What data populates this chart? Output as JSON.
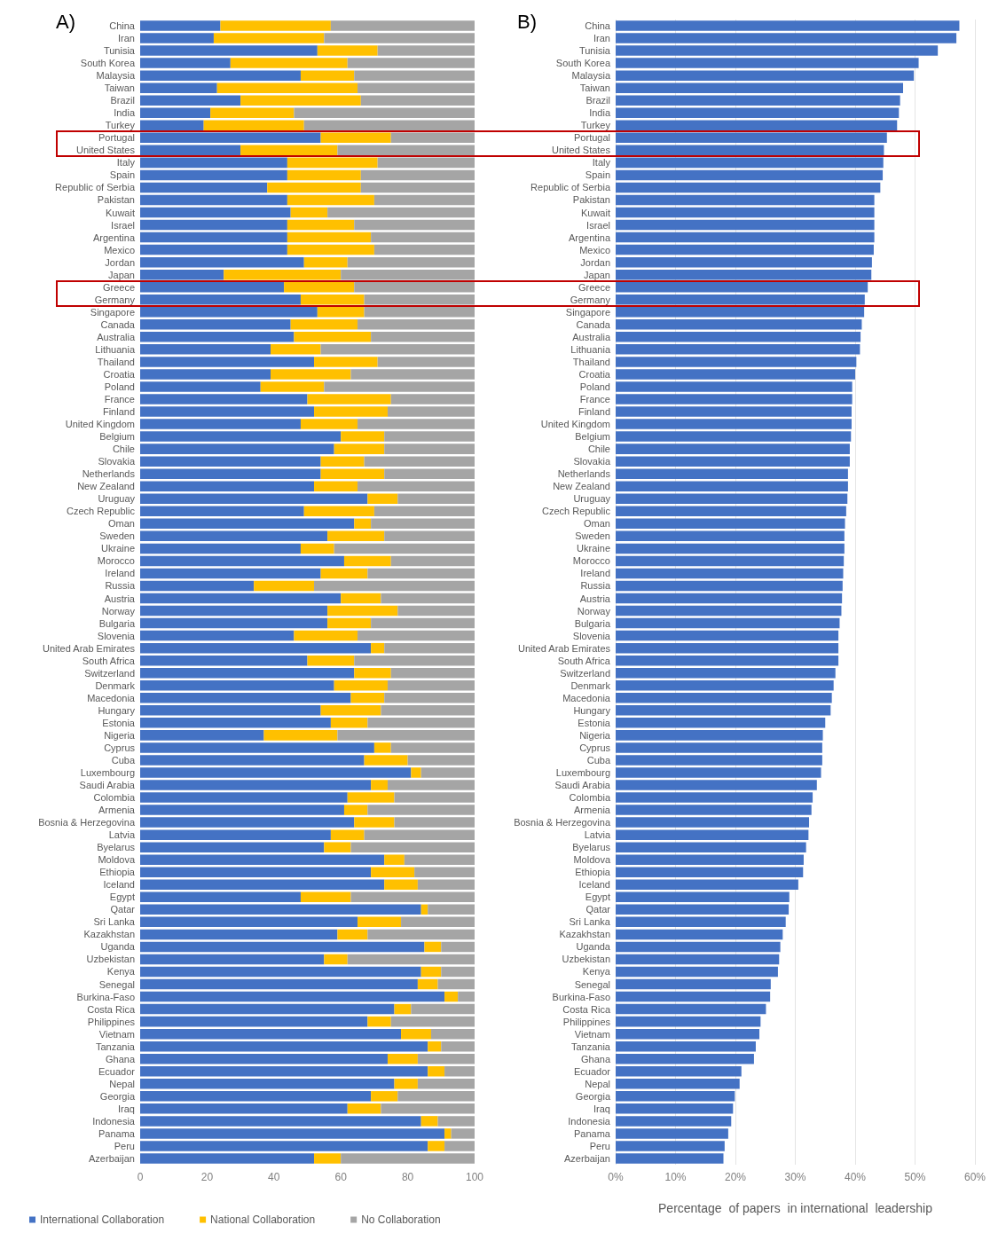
{
  "chart_data": [
    {
      "type": "bar",
      "title": "A)",
      "orientation": "horizontal",
      "stacked": true,
      "legend": "bottom",
      "grid": false,
      "categories": [
        "China",
        "Iran",
        "Tunisia",
        "South Korea",
        "Malaysia",
        "Taiwan",
        "Brazil",
        "India",
        "Turkey",
        "Portugal",
        "United States",
        "Italy",
        "Spain",
        "Republic of Serbia",
        "Pakistan",
        "Kuwait",
        "Israel",
        "Argentina",
        "Mexico",
        "Jordan",
        "Japan",
        "Greece",
        "Germany",
        "Singapore",
        "Canada",
        "Australia",
        "Lithuania",
        "Thailand",
        "Croatia",
        "Poland",
        "France",
        "Finland",
        "United Kingdom",
        "Belgium",
        "Chile",
        "Slovakia",
        "Netherlands",
        "New Zealand",
        "Uruguay",
        "Czech Republic",
        "Oman",
        "Sweden",
        "Ukraine",
        "Morocco",
        "Ireland",
        "Russia",
        "Austria",
        "Norway",
        "Bulgaria",
        "Slovenia",
        "United Arab Emirates",
        "South Africa",
        "Switzerland",
        "Denmark",
        "Macedonia",
        "Hungary",
        "Estonia",
        "Nigeria",
        "Cyprus",
        "Cuba",
        "Luxembourg",
        "Saudi Arabia",
        "Colombia",
        "Armenia",
        "Bosnia & Herzegovina",
        "Latvia",
        "Byelarus",
        "Moldova",
        "Ethiopia",
        "Iceland",
        "Egypt",
        "Qatar",
        "Sri Lanka",
        "Kazakhstan",
        "Uganda",
        "Uzbekistan",
        "Kenya",
        "Senegal",
        "Burkina-Faso",
        "Costa Rica",
        "Philippines",
        "Vietnam",
        "Tanzania",
        "Ghana",
        "Ecuador",
        "Nepal",
        "Georgia",
        "Iraq",
        "Indonesia",
        "Panama",
        "Peru",
        "Azerbaijan"
      ],
      "series": [
        {
          "name": "International Collaboration",
          "color": "#4472c4",
          "values": [
            24,
            22,
            53,
            27,
            48,
            23,
            30,
            21,
            19,
            54,
            30,
            44,
            44,
            38,
            44,
            45,
            44,
            44,
            44,
            49,
            25,
            43,
            48,
            53,
            45,
            46,
            39,
            52,
            39,
            36,
            50,
            52,
            48,
            60,
            58,
            54,
            54,
            52,
            68,
            49,
            64,
            56,
            48,
            61,
            54,
            34,
            60,
            56,
            56,
            46,
            69,
            50,
            64,
            58,
            63,
            54,
            57,
            37,
            70,
            67,
            81,
            69,
            62,
            61,
            64,
            57,
            55,
            73,
            69,
            73,
            48,
            84,
            65,
            59,
            85,
            55,
            84,
            83,
            91,
            76,
            68,
            78,
            86,
            74,
            86,
            76,
            69,
            62,
            84,
            91,
            86,
            52
          ]
        },
        {
          "name": "National Collaboration",
          "color": "#ffc000",
          "values": [
            33,
            33,
            18,
            35,
            16,
            42,
            36,
            25,
            30,
            21,
            29,
            27,
            22,
            28,
            26,
            11,
            20,
            25,
            26,
            13,
            35,
            21,
            19,
            14,
            20,
            23,
            15,
            19,
            24,
            19,
            25,
            22,
            17,
            13,
            15,
            13,
            19,
            13,
            9,
            21,
            5,
            17,
            10,
            14,
            14,
            18,
            12,
            21,
            13,
            19,
            4,
            14,
            11,
            16,
            10,
            18,
            11,
            22,
            5,
            13,
            3,
            5,
            14,
            7,
            12,
            10,
            8,
            6,
            13,
            10,
            15,
            2,
            13,
            9,
            5,
            7,
            6,
            6,
            4,
            5,
            7,
            9,
            4,
            9,
            5,
            7,
            8,
            10,
            5,
            2,
            5,
            8
          ]
        },
        {
          "name": "No Collaboration",
          "color": "#a5a5a5",
          "values": [
            43,
            45,
            29,
            38,
            36,
            35,
            34,
            54,
            51,
            25,
            41,
            29,
            34,
            34,
            30,
            44,
            36,
            31,
            30,
            38,
            40,
            36,
            33,
            33,
            35,
            31,
            46,
            29,
            37,
            45,
            25,
            26,
            35,
            27,
            27,
            33,
            27,
            35,
            23,
            30,
            31,
            27,
            42,
            25,
            32,
            48,
            28,
            23,
            31,
            35,
            27,
            36,
            25,
            26,
            27,
            28,
            32,
            41,
            25,
            20,
            16,
            26,
            24,
            32,
            24,
            33,
            37,
            21,
            18,
            17,
            37,
            14,
            22,
            32,
            10,
            38,
            10,
            11,
            5,
            19,
            25,
            13,
            10,
            17,
            9,
            17,
            23,
            28,
            11,
            7,
            9,
            40
          ]
        }
      ],
      "xlim": [
        0,
        100
      ],
      "xticks": [
        0,
        20,
        40,
        60,
        80,
        100
      ]
    },
    {
      "type": "bar",
      "title": "B)",
      "orientation": "horizontal",
      "grid": "x",
      "xlabel": "Percentage  of papers  in international  leadership",
      "categories": [
        "China",
        "Iran",
        "Tunisia",
        "South Korea",
        "Malaysia",
        "Taiwan",
        "Brazil",
        "India",
        "Turkey",
        "Portugal",
        "United States",
        "Italy",
        "Spain",
        "Republic of Serbia",
        "Pakistan",
        "Kuwait",
        "Israel",
        "Argentina",
        "Mexico",
        "Jordan",
        "Japan",
        "Greece",
        "Germany",
        "Singapore",
        "Canada",
        "Australia",
        "Lithuania",
        "Thailand",
        "Croatia",
        "Poland",
        "France",
        "Finland",
        "United Kingdom",
        "Belgium",
        "Chile",
        "Slovakia",
        "Netherlands",
        "New Zealand",
        "Uruguay",
        "Czech Republic",
        "Oman",
        "Sweden",
        "Ukraine",
        "Morocco",
        "Ireland",
        "Russia",
        "Austria",
        "Norway",
        "Bulgaria",
        "Slovenia",
        "United Arab Emirates",
        "South Africa",
        "Switzerland",
        "Denmark",
        "Macedonia",
        "Hungary",
        "Estonia",
        "Nigeria",
        "Cyprus",
        "Cuba",
        "Luxembourg",
        "Saudi Arabia",
        "Colombia",
        "Armenia",
        "Bosnia & Herzegovina",
        "Latvia",
        "Byelarus",
        "Moldova",
        "Ethiopia",
        "Iceland",
        "Egypt",
        "Qatar",
        "Sri Lanka",
        "Kazakhstan",
        "Uganda",
        "Uzbekistan",
        "Kenya",
        "Senegal",
        "Burkina-Faso",
        "Costa Rica",
        "Philippines",
        "Vietnam",
        "Tanzania",
        "Ghana",
        "Ecuador",
        "Nepal",
        "Georgia",
        "Iraq",
        "Indonesia",
        "Panama",
        "Peru",
        "Azerbaijan"
      ],
      "color": "#4472c4",
      "values": [
        57.4,
        56.9,
        53.8,
        50.6,
        49.8,
        48,
        47.5,
        47.3,
        47,
        45.3,
        44.8,
        44.7,
        44.6,
        44.2,
        43.2,
        43.2,
        43.2,
        43.2,
        43.1,
        42.8,
        42.7,
        42.1,
        41.6,
        41.5,
        41.1,
        40.9,
        40.8,
        40.2,
        40,
        39.5,
        39.5,
        39.4,
        39.4,
        39.3,
        39.1,
        39.1,
        38.8,
        38.8,
        38.7,
        38.5,
        38.3,
        38.2,
        38.2,
        38.1,
        38,
        37.9,
        37.8,
        37.7,
        37.4,
        37.2,
        37.2,
        37.2,
        36.7,
        36.4,
        36.1,
        35.9,
        35,
        34.6,
        34.5,
        34.5,
        34.3,
        33.6,
        32.9,
        32.7,
        32.3,
        32.2,
        31.8,
        31.4,
        31.3,
        30.5,
        29,
        28.9,
        28.4,
        27.9,
        27.5,
        27.3,
        27.1,
        25.9,
        25.8,
        25.1,
        24.2,
        24,
        23.4,
        23.1,
        21,
        20.7,
        19.9,
        19.6,
        19.3,
        18.8,
        18.2,
        18
      ],
      "xlim": [
        0,
        60
      ],
      "xticks": [
        {
          "value": 0,
          "label": "0%"
        },
        {
          "value": 10,
          "label": "10%"
        },
        {
          "value": 20,
          "label": "20%"
        },
        {
          "value": 30,
          "label": "30%"
        },
        {
          "value": 40,
          "label": "40%"
        },
        {
          "value": 50,
          "label": "50%"
        },
        {
          "value": 60,
          "label": "60%"
        }
      ]
    }
  ]
}
